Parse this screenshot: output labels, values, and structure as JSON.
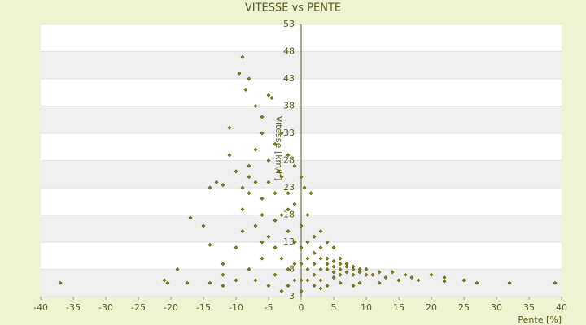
{
  "chart_data": {
    "type": "scatter",
    "title": "VITESSE vs PENTE",
    "x_label": "Pente [%]",
    "y_label": "Vitesse [km/h]",
    "x": [
      -37,
      -21,
      -20.5,
      -19,
      -17.5,
      -14,
      -12,
      -12,
      -14,
      -17,
      -15,
      -14,
      -12,
      -13,
      -11,
      -11,
      -9.5,
      -9,
      -8.5,
      -8,
      -10,
      -10,
      -9,
      -9,
      -8,
      -8,
      -7,
      -7,
      -6,
      -6,
      -5,
      -4.5,
      -5,
      -4,
      -3.5,
      -3,
      -3,
      -2,
      -2,
      -1,
      -1,
      0,
      0.5,
      1,
      1.5,
      -9,
      -8,
      -7,
      -6,
      -5,
      -4,
      -3,
      -2,
      -1,
      -6,
      -7,
      -5,
      -4,
      -3,
      -2,
      -8,
      -7,
      -6,
      -5,
      -4,
      -3,
      -1,
      -10,
      -12,
      -6,
      -4,
      -2,
      0,
      0,
      0,
      0,
      0,
      1,
      1,
      1,
      1,
      2,
      2,
      2,
      2,
      3,
      3,
      3,
      3,
      3,
      4,
      4,
      4,
      4,
      5,
      5,
      5,
      5,
      6,
      6,
      6,
      6,
      7,
      7,
      7,
      8,
      8,
      8,
      9,
      9,
      10,
      10,
      11,
      12,
      13,
      14,
      15,
      16,
      17,
      18,
      20,
      22,
      22,
      25,
      27,
      32,
      39,
      -2,
      2,
      4,
      6,
      8,
      3,
      -1,
      5,
      9,
      12
    ],
    "values": [
      5.5,
      6,
      5.5,
      8,
      5.5,
      5.5,
      7,
      9,
      12.5,
      17.5,
      16,
      23,
      23.5,
      24,
      29,
      34,
      44,
      47,
      41,
      43,
      26,
      12,
      15,
      19,
      22,
      27,
      30,
      38,
      36,
      33,
      40,
      39.5,
      28,
      31,
      26,
      25,
      33,
      29,
      22,
      27,
      20,
      25,
      23,
      18,
      22,
      23,
      25,
      24,
      21,
      24,
      22,
      18,
      15,
      13,
      18,
      16,
      14,
      12,
      10,
      8,
      8,
      6,
      10,
      5,
      7,
      4,
      6,
      6,
      5,
      13,
      17,
      19,
      16,
      12,
      9,
      6,
      4,
      13,
      10,
      8,
      6,
      14,
      11,
      9,
      7,
      15,
      12,
      10,
      8,
      6,
      13,
      10,
      9,
      8,
      12,
      9.5,
      8.5,
      7.5,
      10,
      9,
      8,
      7,
      9,
      8.5,
      7.5,
      8.5,
      8,
      7,
      8,
      7.5,
      7,
      8,
      7,
      7.5,
      6.5,
      7.5,
      6,
      7,
      6.5,
      6,
      7,
      6.5,
      5.8,
      6,
      5.5,
      5.5,
      5.5,
      5,
      5,
      5,
      5.5,
      5,
      4.5,
      9,
      6.5,
      5.5,
      5.5
    ],
    "color": "#8a8a10",
    "xlim": [
      -40,
      40
    ],
    "xticks": [
      -40,
      -35,
      -30,
      -25,
      -20,
      -15,
      -10,
      -5,
      0,
      5,
      10,
      15,
      20,
      25,
      30,
      35,
      40
    ],
    "ylim": [
      3,
      53
    ],
    "yticks": [
      3,
      8,
      13,
      18,
      23,
      28,
      33,
      38,
      43,
      48,
      53
    ],
    "grid": true
  }
}
